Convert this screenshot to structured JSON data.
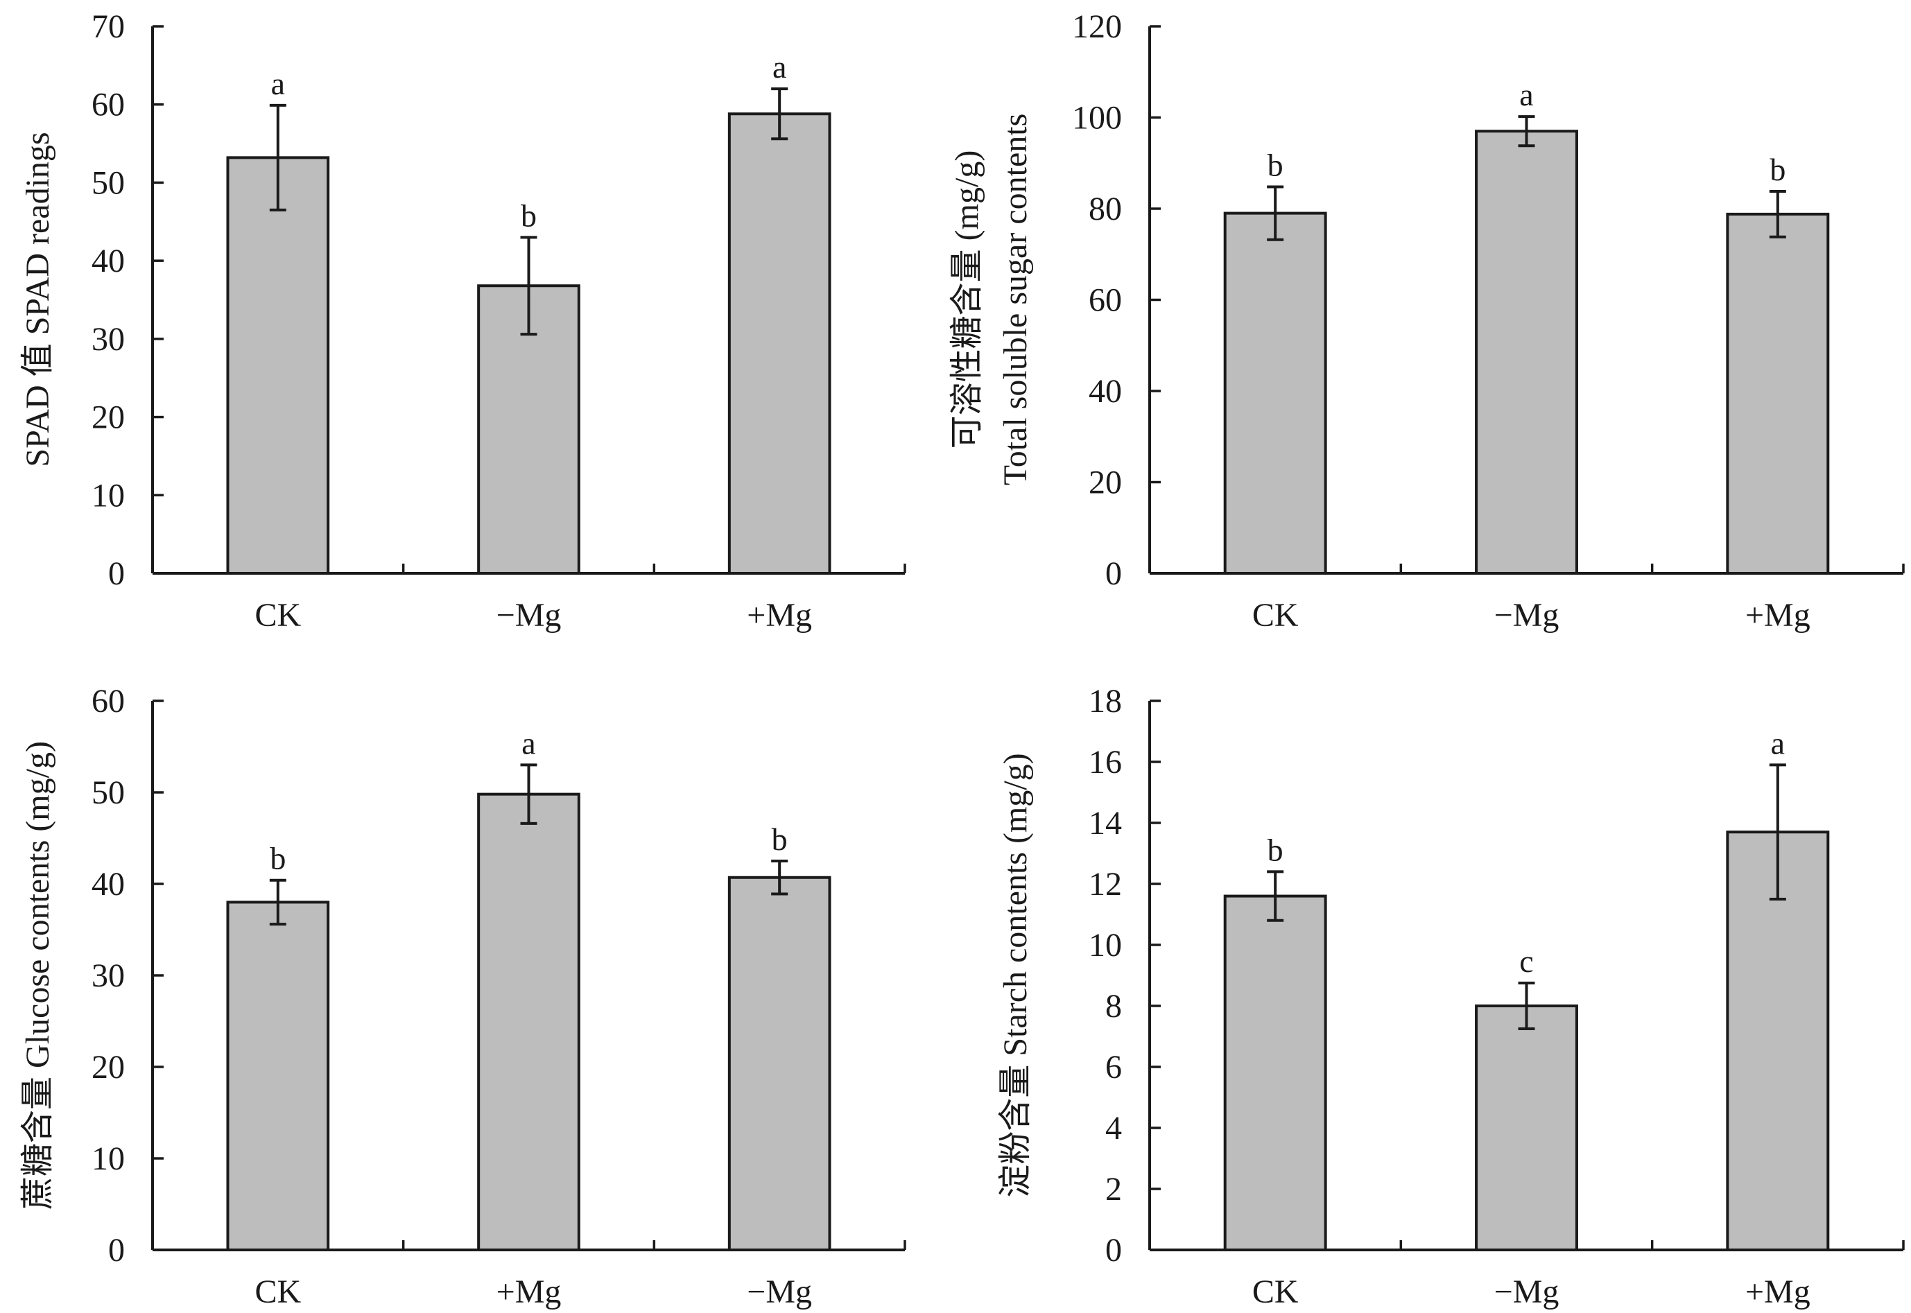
{
  "chart_data": [
    {
      "type": "bar",
      "ylabel_lines": [
        "SPAD 值 SPAD readings"
      ],
      "categories": [
        "CK",
        "−Mg",
        "+Mg"
      ],
      "values": [
        53.2,
        36.8,
        58.8
      ],
      "errors": [
        6.7,
        6.2,
        3.2
      ],
      "significance": [
        "a",
        "b",
        "a"
      ],
      "ylim": [
        0,
        70
      ],
      "yticks": [
        "0",
        "10",
        "20",
        "30",
        "40",
        "50",
        "60",
        "70"
      ],
      "grid": false
    },
    {
      "type": "bar",
      "ylabel_lines": [
        "可溶性糖含量 (mg/g)",
        "Total soluble sugar contents"
      ],
      "categories": [
        "CK",
        "−Mg",
        "+Mg"
      ],
      "values": [
        79,
        97,
        78.8
      ],
      "errors": [
        5.8,
        3.2,
        5.0
      ],
      "significance": [
        "b",
        "a",
        "b"
      ],
      "ylim": [
        0,
        120
      ],
      "yticks": [
        "0",
        "20",
        "40",
        "60",
        "80",
        "100",
        "120"
      ],
      "grid": false
    },
    {
      "type": "bar",
      "ylabel_lines": [
        "蔗糖含量 Glucose contents (mg/g)"
      ],
      "categories": [
        "CK",
        "+Mg",
        "−Mg"
      ],
      "values": [
        38,
        49.8,
        40.7
      ],
      "errors": [
        2.4,
        3.2,
        1.8
      ],
      "significance": [
        "b",
        "a",
        "b"
      ],
      "ylim": [
        0,
        60
      ],
      "yticks": [
        "0",
        "10",
        "20",
        "30",
        "40",
        "50",
        "60"
      ],
      "grid": false
    },
    {
      "type": "bar",
      "ylabel_lines": [
        "淀粉含量 Starch contents (mg/g)"
      ],
      "categories": [
        "CK",
        "−Mg",
        "+Mg"
      ],
      "values": [
        11.6,
        8.0,
        13.7
      ],
      "errors": [
        0.8,
        0.75,
        2.2
      ],
      "significance": [
        "b",
        "c",
        "a"
      ],
      "ylim": [
        0,
        18
      ],
      "yticks": [
        "0",
        "2",
        "4",
        "6",
        "8",
        "10",
        "12",
        "14",
        "16",
        "18"
      ],
      "grid": false
    }
  ]
}
